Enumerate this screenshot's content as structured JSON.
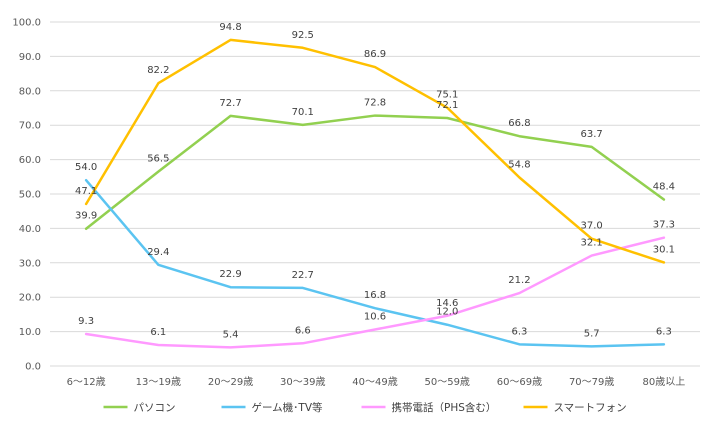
{
  "chart_data": {
    "type": "line",
    "title": "",
    "xlabel": "",
    "ylabel": "",
    "ylim": [
      0,
      100
    ],
    "y_ticks": [
      "0.0",
      "10.0",
      "20.0",
      "30.0",
      "40.0",
      "50.0",
      "60.0",
      "70.0",
      "80.0",
      "90.0",
      "100.0"
    ],
    "grid": true,
    "legend_position": "bottom",
    "categories": [
      "6～12歳",
      "13～19歳",
      "20～29歳",
      "30～39歳",
      "40～49歳",
      "50～59歳",
      "60～69歳",
      "70～79歳",
      "80歳以上"
    ],
    "series": [
      {
        "name": "パソコン",
        "color": "#92d050",
        "values": [
          39.9,
          56.5,
          72.7,
          70.1,
          72.8,
          72.1,
          66.8,
          63.7,
          48.4
        ]
      },
      {
        "name": "ゲーム機･TV等",
        "color": "#5bc4f1",
        "values": [
          54.0,
          29.4,
          22.9,
          22.7,
          16.8,
          12.0,
          6.3,
          5.7,
          6.3
        ]
      },
      {
        "name": "携帯電話（PHS含む）",
        "color": "#ff99ff",
        "values": [
          9.3,
          6.1,
          5.4,
          6.6,
          10.6,
          14.6,
          21.2,
          32.1,
          37.3
        ]
      },
      {
        "name": "スマートフォン",
        "color": "#ffc000",
        "values": [
          47.1,
          82.2,
          94.8,
          92.5,
          86.9,
          75.1,
          54.8,
          37.0,
          30.1
        ]
      }
    ]
  }
}
